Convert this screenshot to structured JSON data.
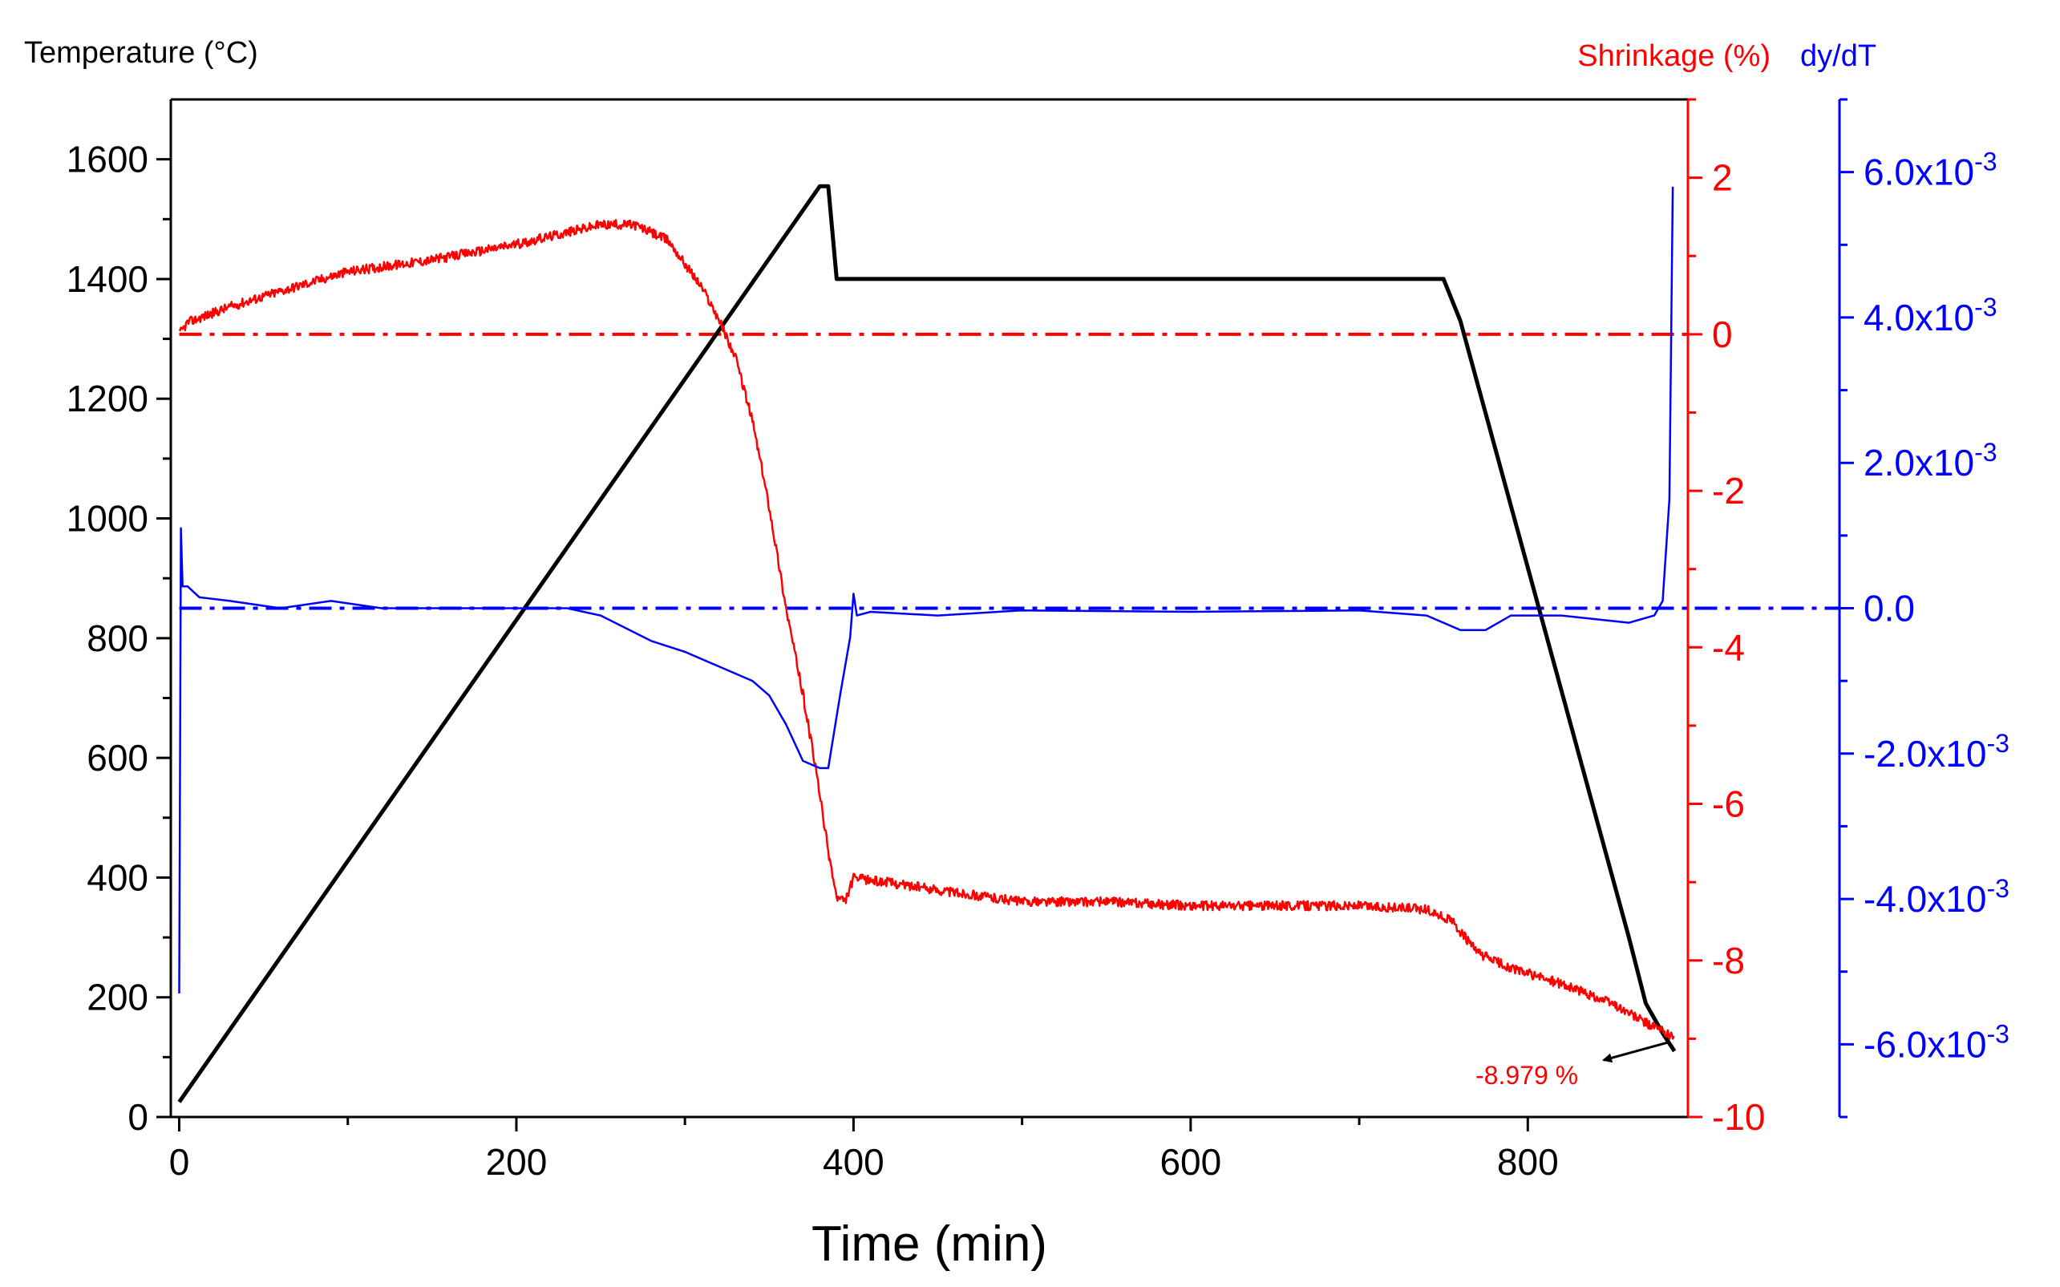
{
  "chart_data": {
    "type": "line",
    "xlabel": "Time (min)",
    "xlim": [
      -5,
      895
    ],
    "xticks": [
      0,
      200,
      400,
      600,
      800
    ],
    "axes": {
      "temperature": {
        "label": "Temperature (°C)",
        "color": "#000000",
        "ylim": [
          0,
          1700
        ],
        "ticks": [
          0,
          200,
          400,
          600,
          800,
          1000,
          1200,
          1400,
          1600
        ]
      },
      "shrinkage": {
        "label": "Shrinkage (%)",
        "color": "#ff0000",
        "ylim": [
          -10,
          3
        ],
        "ticks": [
          -10,
          -8,
          -6,
          -4,
          -2,
          0,
          2
        ]
      },
      "dydt": {
        "label": "dy/dT",
        "color": "#0000ff",
        "ylim": [
          -0.007,
          0.007
        ],
        "ticks": [
          {
            "value": -0.006,
            "label": "-6.0x10",
            "exp": "-3"
          },
          {
            "value": -0.004,
            "label": "-4.0x10",
            "exp": "-3"
          },
          {
            "value": -0.002,
            "label": "-2.0x10",
            "exp": "-3"
          },
          {
            "value": 0,
            "label": "0.0",
            "exp": ""
          },
          {
            "value": 0.002,
            "label": "2.0x10",
            "exp": "-3"
          },
          {
            "value": 0.004,
            "label": "4.0x10",
            "exp": "-3"
          },
          {
            "value": 0.006,
            "label": "6.0x10",
            "exp": "-3"
          }
        ]
      }
    },
    "series": [
      {
        "name": "Temperature",
        "axis": "temperature",
        "color": "#000000",
        "points": [
          [
            0,
            25
          ],
          [
            380,
            1555
          ],
          [
            385,
            1555
          ],
          [
            390,
            1400
          ],
          [
            750,
            1400
          ],
          [
            760,
            1330
          ],
          [
            860,
            300
          ],
          [
            870,
            190
          ],
          [
            880,
            140
          ],
          [
            887,
            110
          ]
        ]
      },
      {
        "name": "Shrinkage",
        "axis": "shrinkage",
        "color": "#ff0000",
        "noisy": true,
        "points": [
          [
            0,
            0
          ],
          [
            5,
            0.15
          ],
          [
            30,
            0.35
          ],
          [
            60,
            0.55
          ],
          [
            100,
            0.8
          ],
          [
            150,
            0.95
          ],
          [
            200,
            1.15
          ],
          [
            230,
            1.3
          ],
          [
            250,
            1.4
          ],
          [
            270,
            1.4
          ],
          [
            290,
            1.2
          ],
          [
            310,
            0.6
          ],
          [
            320,
            0.2
          ],
          [
            330,
            -0.3
          ],
          [
            340,
            -1.1
          ],
          [
            350,
            -2.2
          ],
          [
            360,
            -3.5
          ],
          [
            370,
            -4.6
          ],
          [
            378,
            -5.6
          ],
          [
            385,
            -6.6
          ],
          [
            390,
            -7.2
          ],
          [
            395,
            -7.25
          ],
          [
            400,
            -6.95
          ],
          [
            420,
            -7.0
          ],
          [
            450,
            -7.1
          ],
          [
            500,
            -7.25
          ],
          [
            550,
            -7.25
          ],
          [
            600,
            -7.3
          ],
          [
            650,
            -7.3
          ],
          [
            700,
            -7.3
          ],
          [
            740,
            -7.35
          ],
          [
            755,
            -7.5
          ],
          [
            770,
            -7.9
          ],
          [
            790,
            -8.1
          ],
          [
            820,
            -8.3
          ],
          [
            850,
            -8.55
          ],
          [
            870,
            -8.8
          ],
          [
            887,
            -8.98
          ]
        ]
      },
      {
        "name": "dy/dT",
        "axis": "dydt",
        "color": "#0000ff",
        "points": [
          [
            0,
            -0.0053
          ],
          [
            1,
            0.0011
          ],
          [
            2,
            0.0003
          ],
          [
            5,
            0.0003
          ],
          [
            12,
            0.00015
          ],
          [
            30,
            0.0001
          ],
          [
            60,
            0.0
          ],
          [
            90,
            0.0001
          ],
          [
            120,
            0.0
          ],
          [
            180,
            0.0
          ],
          [
            230,
            0.0
          ],
          [
            250,
            -0.0001
          ],
          [
            280,
            -0.00045
          ],
          [
            300,
            -0.0006
          ],
          [
            320,
            -0.0008
          ],
          [
            340,
            -0.001
          ],
          [
            350,
            -0.0012
          ],
          [
            360,
            -0.0016
          ],
          [
            370,
            -0.0021
          ],
          [
            380,
            -0.0022
          ],
          [
            385,
            -0.0022
          ],
          [
            392,
            -0.0012
          ],
          [
            398,
            -0.0004
          ],
          [
            400,
            0.0002
          ],
          [
            402,
            -0.0001
          ],
          [
            410,
            -5e-05
          ],
          [
            450,
            -0.0001
          ],
          [
            500,
            -3e-05
          ],
          [
            600,
            -5e-05
          ],
          [
            700,
            -3e-05
          ],
          [
            740,
            -0.0001
          ],
          [
            760,
            -0.0003
          ],
          [
            775,
            -0.0003
          ],
          [
            790,
            -0.0001
          ],
          [
            820,
            -0.0001
          ],
          [
            860,
            -0.0002
          ],
          [
            875,
            -0.0001
          ],
          [
            880,
            0.0001
          ],
          [
            884,
            0.0015
          ],
          [
            886,
            0.0058
          ]
        ]
      }
    ],
    "reference_lines": [
      {
        "axis": "shrinkage",
        "value": 0,
        "color": "#ff0000",
        "style": "dash-dot"
      },
      {
        "axis": "dydt",
        "value": 0,
        "color": "#0000ff",
        "style": "dash-dot"
      }
    ],
    "annotation": {
      "text": "-8.979 %",
      "color": "#ff0000",
      "points_to": [
        887,
        -8.98
      ],
      "axis": "shrinkage"
    }
  }
}
